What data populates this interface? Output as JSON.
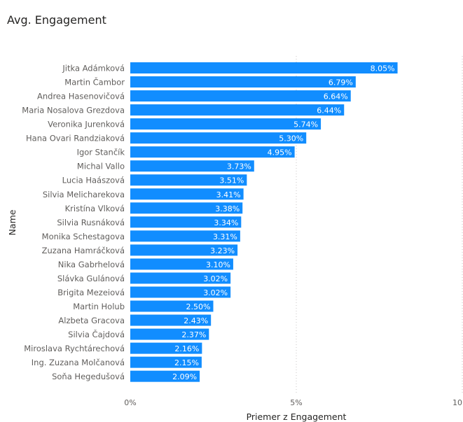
{
  "title": "Avg. Engagement",
  "chart_data": {
    "type": "bar",
    "orientation": "horizontal",
    "title": "Avg. Engagement",
    "xlabel": "Priemer z Engagement",
    "ylabel": "Name",
    "xlim": [
      0,
      10
    ],
    "x_ticks": [
      "0%",
      "5%",
      "10"
    ],
    "grid": true,
    "bar_color": "#118DFF",
    "categories": [
      "Jitka Adámková",
      "Martin Čambor",
      "Andrea Hasenovičová",
      "Maria Nosalova Grezdova",
      "Veronika Jurenková",
      "Hana Ovari Randziaková",
      "Igor Stančík",
      "Michal Vallo",
      "Lucia Haászová",
      "Silvia Melicharekova",
      "Kristína Vlková",
      "Silvia Rusnáková",
      "Monika Schestagova",
      "Zuzana Hamráčková",
      "Nika Gabrhelová",
      "Slávka Gulánová",
      "Brigita Mezeiová",
      "Martin Holub",
      "Alzbeta Gracova",
      "Silvia Čajdová",
      "Miroslava Rychtárechová",
      "Ing. Zuzana Molčanová",
      "Soňa Hegedušová"
    ],
    "values": [
      8.05,
      6.79,
      6.64,
      6.44,
      5.74,
      5.3,
      4.95,
      3.73,
      3.51,
      3.41,
      3.38,
      3.34,
      3.31,
      3.23,
      3.1,
      3.02,
      3.02,
      2.5,
      2.43,
      2.37,
      2.16,
      2.15,
      2.09
    ],
    "value_labels": [
      "8.05%",
      "6.79%",
      "6.64%",
      "6.44%",
      "5.74%",
      "5.30%",
      "4.95%",
      "3.73%",
      "3.51%",
      "3.41%",
      "3.38%",
      "3.34%",
      "3.31%",
      "3.23%",
      "3.10%",
      "3.02%",
      "3.02%",
      "2.50%",
      "2.43%",
      "2.37%",
      "2.16%",
      "2.15%",
      "2.09%"
    ]
  }
}
